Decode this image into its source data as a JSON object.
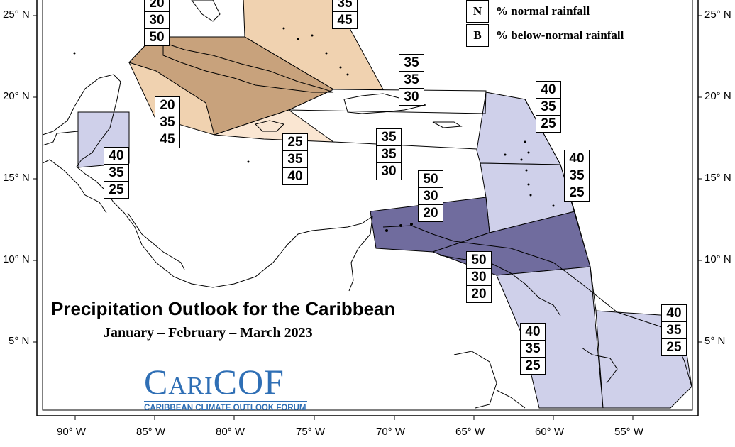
{
  "title": "Precipitation Outlook for the Caribbean",
  "subtitle": "January – February – March 2023",
  "logo": {
    "main_prefix": "Cari",
    "main_suffix": "COF",
    "subtitle": "CARIBBEAN CLIMATE OUTLOOK FORUM"
  },
  "legend": [
    {
      "key": "N",
      "label": "% normal rainfall"
    },
    {
      "key": "B",
      "label": "% below-normal rainfall"
    }
  ],
  "lat_labels": [
    "25° N",
    "20° N",
    "15° N",
    "10° N",
    "5° N"
  ],
  "lon_labels": [
    "90° W",
    "85° W",
    "80° W",
    "75° W",
    "70° W",
    "65° W",
    "60° W",
    "55° W"
  ],
  "colors": {
    "dark_tan": "#c8a27c",
    "tan": "#f0d2b0",
    "light_tan": "#fae6d2",
    "lavender": "#cfd0ea",
    "dark_purple": "#706c9e",
    "coast": "#000000"
  },
  "probability_boxes": [
    {
      "region": "cuba",
      "values": [
        "20",
        "30",
        "50"
      ]
    },
    {
      "region": "bahamas",
      "values": [
        "35",
        "45"
      ]
    },
    {
      "region": "hispaniola-north",
      "values": [
        "35",
        "35",
        "30"
      ]
    },
    {
      "region": "leeward-islands-north",
      "values": [
        "40",
        "35",
        "25"
      ]
    },
    {
      "region": "western-caribbean",
      "values": [
        "20",
        "35",
        "45"
      ]
    },
    {
      "region": "jamaica",
      "values": [
        "25",
        "35",
        "40"
      ]
    },
    {
      "region": "central-caribbean",
      "values": [
        "35",
        "35",
        "30"
      ]
    },
    {
      "region": "belize",
      "values": [
        "40",
        "35",
        "25"
      ]
    },
    {
      "region": "leeward-islands-south",
      "values": [
        "40",
        "35",
        "25"
      ]
    },
    {
      "region": "abc-islands",
      "values": [
        "50",
        "30",
        "20"
      ]
    },
    {
      "region": "trinidad-tobago",
      "values": [
        "50",
        "30",
        "20"
      ]
    },
    {
      "region": "guyana",
      "values": [
        "40",
        "35",
        "25"
      ]
    },
    {
      "region": "suriname-french-guiana",
      "values": [
        "40",
        "35",
        "25"
      ]
    }
  ]
}
